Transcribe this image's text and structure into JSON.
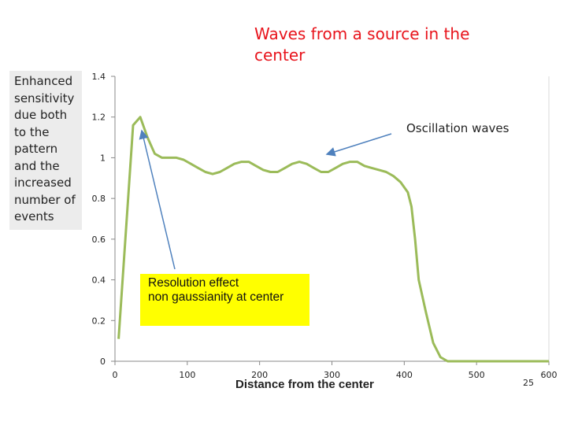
{
  "slide": {
    "title": "Waves from a source in the center",
    "sidebar_note": "Enhanced sensitivity due both to the pattern and the increased number of events",
    "page_number": "25"
  },
  "annotations": {
    "oscillation": "Oscillation waves",
    "resolution": "Resolution effect\n non gaussianity at center"
  },
  "colors": {
    "line": "#9bbb59",
    "title": "#e8141c",
    "highlight": "#ffff00",
    "arrow": "#4f81bd"
  },
  "chart_data": {
    "type": "line",
    "title": "",
    "xlabel": "Distance from the center",
    "ylabel": "",
    "xlim": [
      0,
      600
    ],
    "ylim": [
      0,
      1.4
    ],
    "xticks": [
      "0",
      "100",
      "200",
      "300",
      "400",
      "500",
      "600"
    ],
    "yticks": [
      "0",
      "0.2",
      "0.4",
      "0.6",
      "0.8",
      "1",
      "1.2",
      "1.4"
    ],
    "grid": false,
    "series": [
      {
        "x": [
          5,
          25,
          35,
          45,
          55,
          65,
          75,
          85,
          95,
          105,
          115,
          125,
          135,
          145,
          155,
          165,
          175,
          185,
          195,
          205,
          215,
          225,
          235,
          245,
          255,
          265,
          275,
          285,
          295,
          305,
          315,
          325,
          335,
          345,
          355,
          365,
          375,
          385,
          395,
          405,
          410,
          415,
          420,
          430,
          440,
          450,
          460,
          470,
          480,
          500,
          550,
          600
        ],
        "y": [
          0.11,
          1.16,
          1.2,
          1.1,
          1.02,
          1.0,
          1.0,
          1.0,
          0.99,
          0.97,
          0.95,
          0.93,
          0.92,
          0.93,
          0.95,
          0.97,
          0.98,
          0.98,
          0.96,
          0.94,
          0.93,
          0.93,
          0.95,
          0.97,
          0.98,
          0.97,
          0.95,
          0.93,
          0.93,
          0.95,
          0.97,
          0.98,
          0.98,
          0.96,
          0.95,
          0.94,
          0.93,
          0.91,
          0.88,
          0.83,
          0.76,
          0.6,
          0.4,
          0.24,
          0.09,
          0.02,
          0.0,
          0.0,
          0.0,
          0.0,
          0.0,
          0.0
        ]
      }
    ]
  }
}
